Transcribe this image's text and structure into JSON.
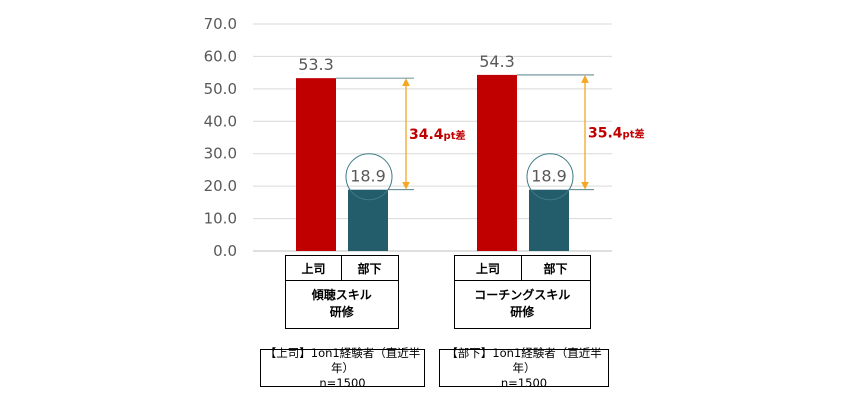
{
  "chart_data": {
    "type": "bar",
    "ylim": [
      0,
      70
    ],
    "yticks": [
      "0.0",
      "10.0",
      "20.0",
      "30.0",
      "40.0",
      "50.0",
      "60.0",
      "70.0"
    ],
    "grid": true,
    "groups": [
      {
        "name": "傾聴スキル\n研修",
        "bars": [
          {
            "category": "上司",
            "value": 53.3,
            "label": "53.3",
            "color": "#c00000"
          },
          {
            "category": "部下",
            "value": 18.9,
            "label": "18.9",
            "color": "#235c6a"
          }
        ],
        "difference": {
          "value": "34.4",
          "unit": "pt差"
        }
      },
      {
        "name": "コーチングスキル\n研修",
        "bars": [
          {
            "category": "上司",
            "value": 54.3,
            "label": "54.3",
            "color": "#c00000"
          },
          {
            "category": "部下",
            "value": 18.9,
            "label": "18.9",
            "color": "#235c6a"
          }
        ],
        "difference": {
          "value": "35.4",
          "unit": "pt差"
        }
      }
    ]
  },
  "notes": [
    {
      "line1": "【上司】1on1経験者（直近半年）",
      "line2": "n=1500"
    },
    {
      "line1": "【部下】1on1経験者（直近半年）",
      "line2": "n=1500"
    }
  ],
  "colors": {
    "boss": "#c00000",
    "subordinate": "#235c6a",
    "arrow": "#f5a623",
    "grid": "#d9d9d9"
  }
}
